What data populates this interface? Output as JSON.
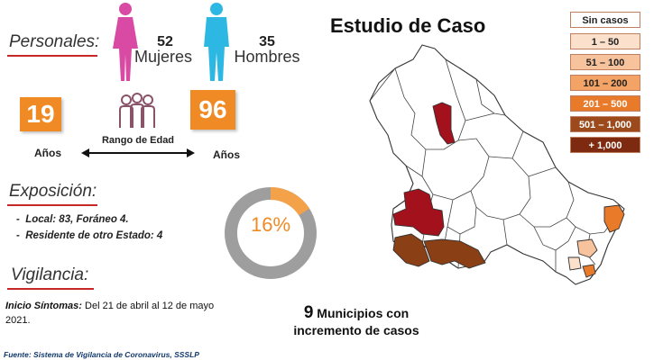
{
  "header": {
    "personales_label": "Personales:",
    "mujeres_count": "52",
    "mujeres_label": "Mujeres",
    "hombres_count": "35",
    "hombres_label": "Hombres"
  },
  "age": {
    "min": "19",
    "max": "96",
    "min_unit": "Años",
    "max_unit": "Años",
    "range_label": "Rango de Edad"
  },
  "exposicion": {
    "title": "Exposición:",
    "items": [
      "Local: 83, Foráneo 4.",
      "Residente de otro Estado: 4"
    ]
  },
  "donut": {
    "value_label": "16%",
    "fraction": 0.16,
    "fill_color": "#f4a24a",
    "rest_color": "#9e9e9e"
  },
  "vigilancia": {
    "title": "Vigilancia:",
    "inicio_label": "Inicio Síntomas:",
    "inicio_text": "Del 21 de abril al 12 de mayo 2021."
  },
  "map": {
    "title": "Estudio de Caso",
    "summary_number": "9",
    "summary_line1": "Municipios con",
    "summary_line2": "incremento de casos"
  },
  "legend": [
    {
      "label": "Sin casos",
      "color": "#ffffff",
      "text_color": "#222222"
    },
    {
      "label": "1 – 50",
      "color": "#fbe0cc",
      "text_color": "#222222"
    },
    {
      "label": "51 – 100",
      "color": "#f7c39c",
      "text_color": "#222222"
    },
    {
      "label": "101 – 200",
      "color": "#f3a365",
      "text_color": "#222222"
    },
    {
      "label": "201 – 500",
      "color": "#e87a2a",
      "text_color": "#ffffff"
    },
    {
      "label": "501 – 1,000",
      "color": "#9c4a1c",
      "text_color": "#ffffff"
    },
    {
      "label": "+ 1,000",
      "color": "#7e2a10",
      "text_color": "#ffffff"
    }
  ],
  "footer": {
    "source": "Fuente: Sistema de Vigilancia de Coronavirus, SSSLP"
  }
}
